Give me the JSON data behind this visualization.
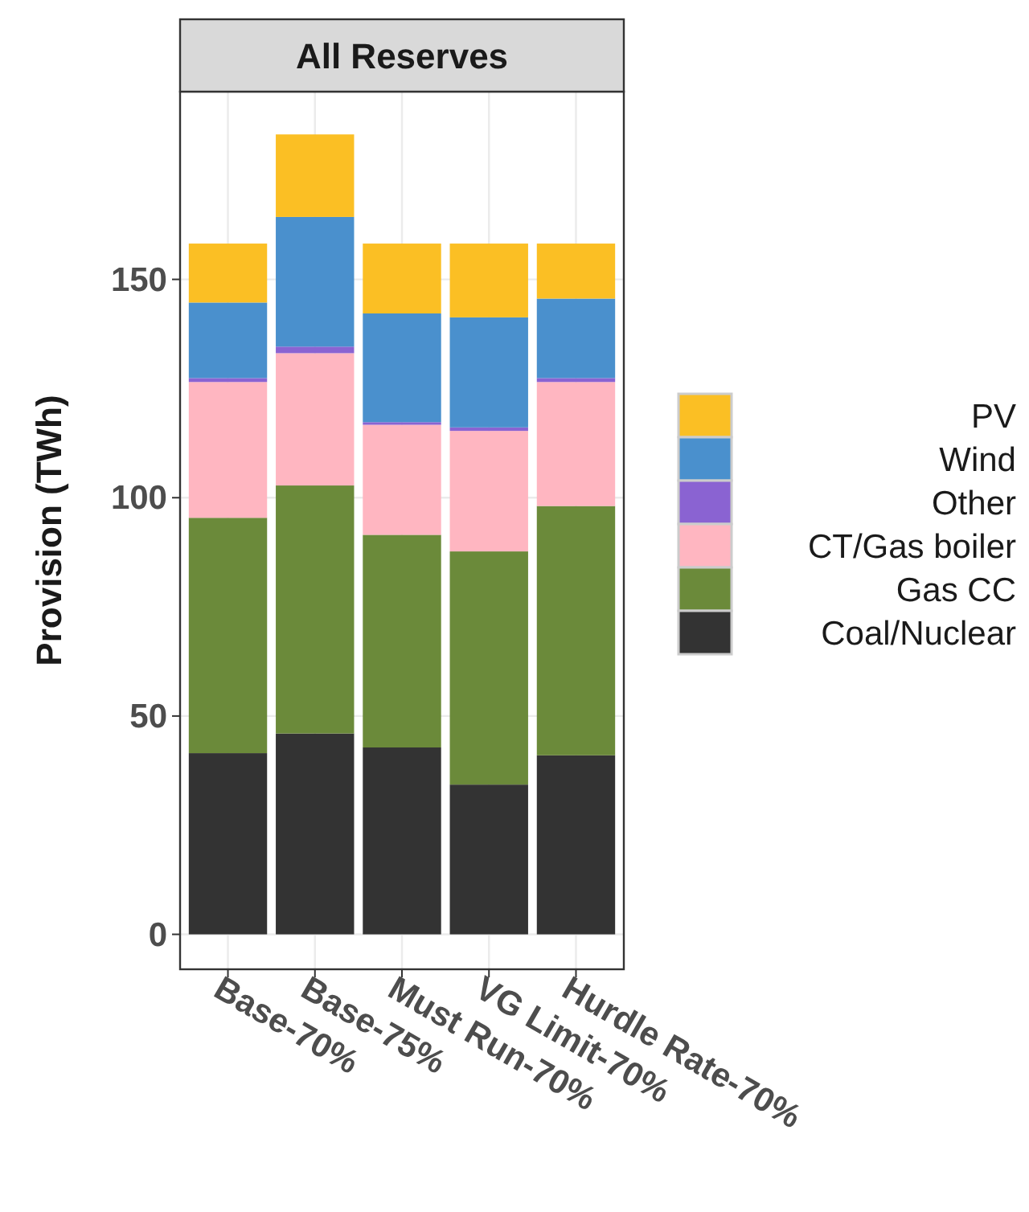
{
  "chart_data": {
    "type": "bar",
    "title": "All Reserves",
    "ylabel": "Provision (TWh)",
    "categories": [
      "Base-70%",
      "Base-75%",
      "Must Run-70%",
      "VG Limit-70%",
      "Hurdle Rate-70%"
    ],
    "stacked": true,
    "ylim": [
      -8,
      193
    ],
    "yticks": [
      0,
      50,
      100,
      150
    ],
    "grid": true,
    "legend": "right",
    "series": [
      {
        "name": "Coal/Nuclear",
        "color": "#333333",
        "values": [
          41.5,
          46.0,
          42.8,
          34.3,
          41.0
        ]
      },
      {
        "name": "Gas CC",
        "color": "#6b8a3a",
        "values": [
          53.9,
          56.8,
          48.7,
          53.4,
          57.1
        ]
      },
      {
        "name": "CT/Gas boiler",
        "color": "#ffb6c1",
        "values": [
          31.1,
          30.3,
          25.2,
          27.6,
          28.4
        ]
      },
      {
        "name": "Other",
        "color": "#8a63d2",
        "values": [
          0.9,
          1.5,
          0.6,
          0.8,
          0.9
        ]
      },
      {
        "name": "Wind",
        "color": "#4a90cd",
        "values": [
          17.3,
          29.7,
          24.9,
          25.2,
          18.2
        ]
      },
      {
        "name": "PV",
        "color": "#fbbf24",
        "values": [
          13.5,
          18.9,
          16.0,
          16.9,
          12.6
        ]
      }
    ]
  }
}
